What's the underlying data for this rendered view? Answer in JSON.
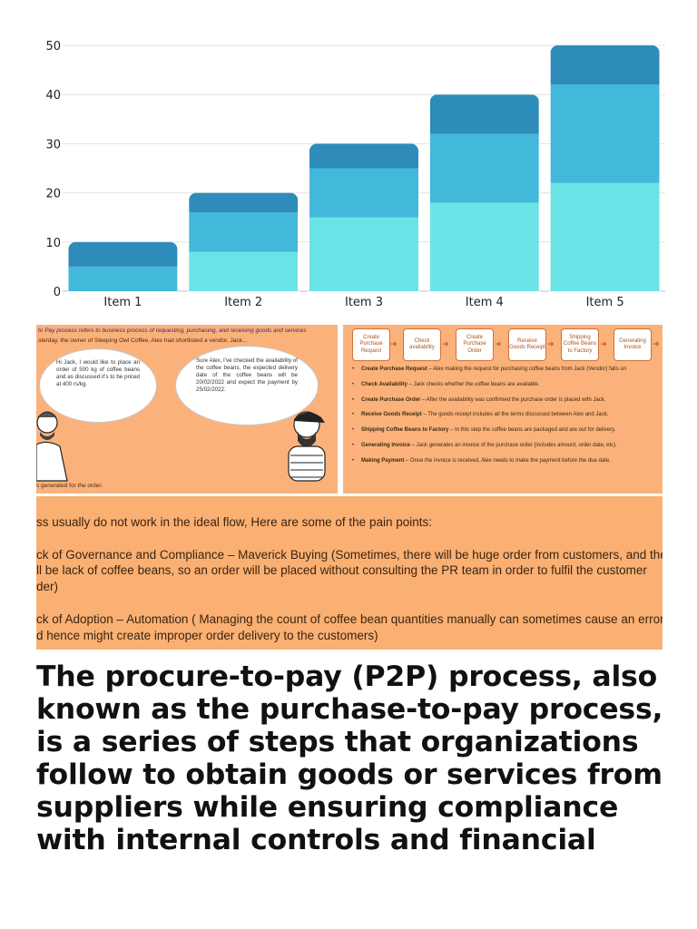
{
  "chart_data": {
    "type": "bar",
    "stacked": true,
    "categories": [
      "Item 1",
      "Item 2",
      "Item 3",
      "Item 4",
      "Item 5"
    ],
    "series": [
      {
        "color": "#6ae3e6",
        "values": [
          0,
          8,
          15,
          18,
          22
        ]
      },
      {
        "color": "#42b9da",
        "values": [
          5,
          8,
          10,
          14,
          20
        ]
      },
      {
        "color": "#2d8cb9",
        "values": [
          5,
          4,
          5,
          8,
          8
        ]
      }
    ],
    "yticks": [
      0,
      10,
      20,
      30,
      40,
      50
    ],
    "ylim": [
      0,
      50
    ],
    "grid": true,
    "title": "",
    "xlabel": "",
    "ylabel": ""
  },
  "slide": {
    "intro_line": "to Pay process refers to business process of requesting, purchasing, and receiving goods and services",
    "intro_line2": "sterday, the owner of Sleeping Owl Coffee, Alex had shortlisted a vendor, Jack...",
    "bubble_left": "Hi Jack, I would like to place an order of 500 kg of coffee beans and as discussed it's to be priced at 400 rs/kg.",
    "bubble_right": "Sure Alex, I've checked the availability of the coffee beans, the expected delivery date of the coffee beans will be 20/02/2022 and expect the payment by 25/02/2022.",
    "order_note": "s generated for the order.",
    "flow": [
      "Create Purchase Request",
      "Check availability",
      "Create Purchase Order",
      "Receive Goods Receipt",
      "Shipping Coffee Beans to Factory",
      "Generating Invoice"
    ],
    "steps": [
      {
        "title": "Create Purchase Request",
        "text": " – Alex making the request for purchasing coffee beans from Jack (Vendor) falls un"
      },
      {
        "title": "Check Availability",
        "text": " – Jack checks whether the coffee beans are available."
      },
      {
        "title": "Create Purchase Order",
        "text": " – After the availability was confirmed the purchase order is placed with Jack."
      },
      {
        "title": "Receive Goods Receipt",
        "text": " – The goods receipt includes all the terms discussed between Alex and Jack."
      },
      {
        "title": "Shipping Coffee Beans to Factory",
        "text": " – In this step the coffee beans are packaged and are out for delivery."
      },
      {
        "title": "Generating Invoice",
        "text": " – Jack generates an invoice of the purchase order (includes amount, order date, etc)."
      },
      {
        "title": "Making Payment",
        "text": " – Once the invoice is received, Alex needs to make the payment before the due date."
      }
    ],
    "pain_intro": "ss usually do not work in the ideal flow, Here are some of the pain points:",
    "pain1_l1": "ck of Governance and Compliance – Maverick Buying (Sometimes, there will be huge order from customers, and there",
    "pain1_l2": "ll be lack of coffee beans, so an order will be placed without consulting the PR team in order to fulfil the customer",
    "pain1_l3": "der)",
    "pain2_l1": "ck of Adoption – Automation ( Managing the count of coffee bean quantities manually can sometimes cause an error",
    "pain2_l2": "d hence might create improper order delivery to the customers)"
  },
  "caption": "The procure-to-pay (P2P) process, also known as the purchase-to-pay process, is a series of steps that organizations follow to obtain goods or services from suppliers while ensuring compliance with internal controls and financial"
}
